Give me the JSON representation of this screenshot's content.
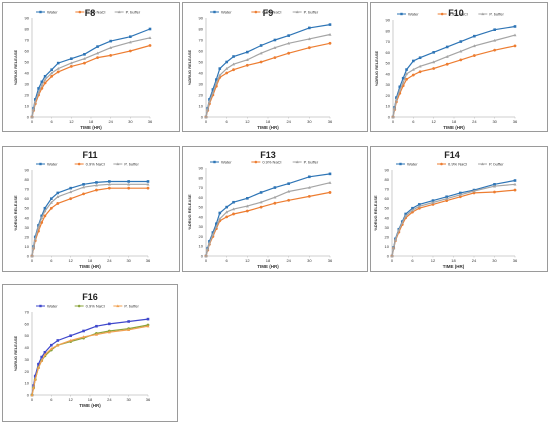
{
  "legend_labels": [
    "Water",
    "0.9% NaCl",
    "P. buffer"
  ],
  "colors": {
    "water": "#2e75b6",
    "nacl": "#ed7d31",
    "buffer": "#a5a5a5",
    "f16_water": "#3f48cc",
    "f16_nacl": "#8aa33a",
    "f16_buffer": "#f0a050"
  },
  "chart_data": [
    {
      "type": "line",
      "title": "F8",
      "xlabel": "TIME (HR)",
      "ylabel": "%DRUG RELEASE",
      "xlim": [
        0,
        36
      ],
      "ylim": [
        0,
        90
      ],
      "xticks": [
        0,
        6,
        12,
        18,
        24,
        30,
        36
      ],
      "yticks": [
        0,
        10,
        20,
        30,
        40,
        50,
        60,
        70,
        80,
        90
      ],
      "x": [
        0,
        0.5,
        1,
        2,
        3,
        4,
        6,
        8,
        12,
        16,
        20,
        24,
        30,
        36
      ],
      "series": [
        {
          "name": "Water",
          "values": [
            0,
            8,
            16,
            26,
            32,
            37,
            43,
            49,
            53,
            57,
            64,
            69,
            73,
            80
          ]
        },
        {
          "name": "0.9% NaCl",
          "values": [
            0,
            6,
            12,
            20,
            26,
            31,
            37,
            41,
            46,
            49,
            54,
            56,
            60,
            65
          ]
        },
        {
          "name": "P. buffer",
          "values": [
            0,
            7,
            14,
            22,
            29,
            34,
            40,
            44,
            49,
            53,
            58,
            63,
            68,
            72
          ]
        }
      ]
    },
    {
      "type": "line",
      "title": "F9",
      "xlabel": "TIME (HR)",
      "ylabel": "%DRUG RELEASE",
      "xlim": [
        0,
        36
      ],
      "ylim": [
        0,
        90
      ],
      "xticks": [
        0,
        6,
        12,
        18,
        24,
        30,
        36
      ],
      "yticks": [
        0,
        10,
        20,
        30,
        40,
        50,
        60,
        70,
        80,
        90
      ],
      "x": [
        0,
        0.5,
        1,
        2,
        3,
        4,
        6,
        8,
        12,
        16,
        20,
        24,
        30,
        36
      ],
      "series": [
        {
          "name": "Water",
          "values": [
            0,
            8,
            16,
            25,
            34,
            44,
            50,
            55,
            59,
            65,
            70,
            74,
            81,
            84
          ]
        },
        {
          "name": "0.9% NaCl",
          "values": [
            0,
            6,
            12,
            20,
            28,
            36,
            40,
            43,
            47,
            50,
            54,
            58,
            63,
            67
          ]
        },
        {
          "name": "P. buffer",
          "values": [
            0,
            7,
            14,
            22,
            31,
            38,
            44,
            48,
            52,
            58,
            63,
            67,
            71,
            75
          ]
        }
      ]
    },
    {
      "type": "line",
      "title": "F10",
      "xlabel": "TIME (HR)",
      "ylabel": "%DRUG RELEASE",
      "xlim": [
        0,
        36
      ],
      "ylim": [
        0,
        90
      ],
      "xticks": [
        0,
        6,
        12,
        18,
        24,
        30,
        36
      ],
      "yticks": [
        0,
        10,
        20,
        30,
        40,
        50,
        60,
        70,
        80,
        90
      ],
      "x": [
        0,
        0.5,
        1,
        2,
        3,
        4,
        6,
        8,
        12,
        16,
        20,
        24,
        30,
        36
      ],
      "series": [
        {
          "name": "Water",
          "values": [
            0,
            9,
            18,
            28,
            36,
            44,
            52,
            55,
            60,
            65,
            70,
            75,
            81,
            84
          ]
        },
        {
          "name": "0.9% NaCl",
          "values": [
            0,
            7,
            14,
            22,
            29,
            35,
            39,
            42,
            45,
            49,
            53,
            57,
            62,
            66
          ]
        },
        {
          "name": "P. buffer",
          "values": [
            0,
            8,
            16,
            25,
            32,
            40,
            44,
            47,
            51,
            56,
            61,
            66,
            71,
            76
          ]
        }
      ]
    },
    {
      "type": "line",
      "title": "F11",
      "xlabel": "TIME (HR)",
      "ylabel": "%DRUG RELEASE",
      "xlim": [
        0,
        36
      ],
      "ylim": [
        0,
        90
      ],
      "xticks": [
        0,
        6,
        12,
        18,
        24,
        30,
        36
      ],
      "yticks": [
        0,
        10,
        20,
        30,
        40,
        50,
        60,
        70,
        80,
        90
      ],
      "x": [
        0,
        0.5,
        1,
        2,
        3,
        4,
        6,
        8,
        12,
        16,
        20,
        24,
        30,
        36
      ],
      "series": [
        {
          "name": "Water",
          "values": [
            0,
            10,
            20,
            32,
            42,
            50,
            60,
            66,
            71,
            75,
            77,
            78,
            78,
            78
          ]
        },
        {
          "name": "0.9% NaCl",
          "values": [
            0,
            8,
            16,
            26,
            35,
            42,
            50,
            55,
            60,
            65,
            69,
            71,
            71,
            71
          ]
        },
        {
          "name": "P. buffer",
          "values": [
            0,
            9,
            18,
            30,
            40,
            47,
            56,
            62,
            67,
            72,
            74,
            75,
            75,
            75
          ]
        }
      ]
    },
    {
      "type": "line",
      "title": "F13",
      "xlabel": "TIME (HR)",
      "ylabel": "%DRUG RELEASE",
      "xlim": [
        0,
        36
      ],
      "ylim": [
        0,
        90
      ],
      "xticks": [
        0,
        6,
        12,
        18,
        24,
        30,
        36
      ],
      "yticks": [
        0,
        10,
        20,
        30,
        40,
        50,
        60,
        70,
        80,
        90
      ],
      "x": [
        0,
        0.5,
        1,
        2,
        3,
        4,
        6,
        8,
        12,
        16,
        20,
        24,
        30,
        36
      ],
      "series": [
        {
          "name": "Water",
          "values": [
            0,
            8,
            15,
            24,
            33,
            44,
            50,
            55,
            59,
            65,
            70,
            74,
            81,
            84
          ]
        },
        {
          "name": "0.9% NaCl",
          "values": [
            0,
            6,
            12,
            20,
            28,
            36,
            40,
            43,
            46,
            50,
            54,
            57,
            61,
            65
          ]
        },
        {
          "name": "P. buffer",
          "values": [
            0,
            7,
            13,
            22,
            30,
            38,
            45,
            48,
            51,
            55,
            60,
            66,
            70,
            75
          ]
        }
      ]
    },
    {
      "type": "line",
      "title": "F14",
      "xlabel": "TIME (HR)",
      "ylabel": "%DRUG RELEASE",
      "xlim": [
        0,
        36
      ],
      "ylim": [
        0,
        90
      ],
      "xticks": [
        0,
        6,
        12,
        18,
        24,
        30,
        36
      ],
      "yticks": [
        0,
        10,
        20,
        30,
        40,
        50,
        60,
        70,
        80,
        90
      ],
      "x": [
        0,
        0.5,
        1,
        2,
        3,
        4,
        6,
        8,
        12,
        16,
        20,
        24,
        30,
        36
      ],
      "series": [
        {
          "name": "Water",
          "values": [
            0,
            9,
            18,
            28,
            36,
            44,
            50,
            54,
            58,
            62,
            66,
            69,
            75,
            79
          ]
        },
        {
          "name": "0.9% NaCl",
          "values": [
            0,
            8,
            16,
            25,
            33,
            40,
            46,
            50,
            54,
            58,
            62,
            66,
            67,
            69
          ]
        },
        {
          "name": "P. buffer",
          "values": [
            0,
            8,
            17,
            27,
            35,
            42,
            48,
            52,
            56,
            60,
            64,
            68,
            73,
            75
          ]
        }
      ]
    },
    {
      "type": "line",
      "title": "F16",
      "xlabel": "TIME (HR)",
      "ylabel": "%DRUG RELEASE",
      "xlim": [
        0,
        36
      ],
      "ylim": [
        0,
        70
      ],
      "xticks": [
        0,
        6,
        12,
        18,
        24,
        30,
        36
      ],
      "yticks": [
        0,
        10,
        20,
        30,
        40,
        50,
        60,
        70
      ],
      "x": [
        0,
        0.5,
        1,
        2,
        3,
        4,
        6,
        8,
        12,
        16,
        20,
        24,
        30,
        36
      ],
      "series": [
        {
          "name": "Water",
          "values": [
            0,
            8,
            16,
            26,
            32,
            36,
            42,
            46,
            50,
            54,
            58,
            60,
            62,
            64
          ]
        },
        {
          "name": "0.9% NaCl",
          "values": [
            0,
            6,
            13,
            23,
            29,
            33,
            38,
            42,
            45,
            48,
            52,
            54,
            56,
            59
          ]
        },
        {
          "name": "P. buffer",
          "values": [
            0,
            6,
            13,
            23,
            29,
            34,
            39,
            42,
            46,
            49,
            51,
            53,
            55,
            58
          ]
        }
      ]
    }
  ]
}
